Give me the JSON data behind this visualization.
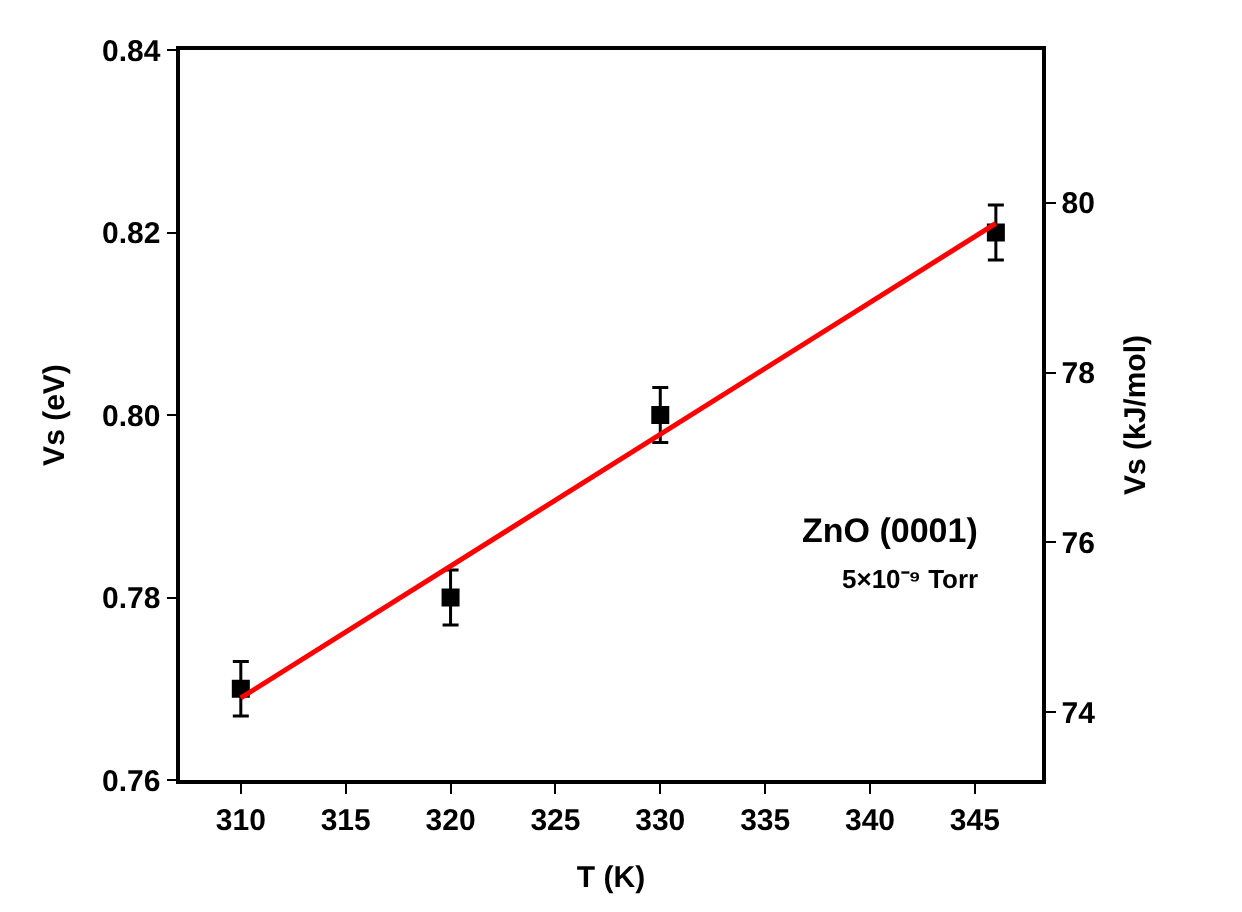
{
  "chart_data": {
    "type": "scatter",
    "xlabel": "T (K)",
    "ylabel": "Vs (eV)",
    "y2label": "Vs (kJ/mol)",
    "x": [
      310,
      320,
      330,
      346
    ],
    "series": [
      {
        "color": "#000000",
        "marker": "square",
        "values": [
          0.77,
          0.78,
          0.8,
          0.82
        ],
        "errors": [
          0.003,
          0.003,
          0.003,
          0.003
        ]
      },
      {
        "type": "line",
        "color": "#ff0000",
        "x": [
          310,
          346
        ],
        "values": [
          0.769,
          0.821
        ],
        "line_style": "solid"
      }
    ],
    "xlim": [
      307.1,
      348.2
    ],
    "xticks": [
      310,
      315,
      320,
      325,
      330,
      335,
      340,
      345
    ],
    "ylim": [
      0.76,
      0.84
    ],
    "yticks": [
      {
        "value": 0.76,
        "label": "0.76"
      },
      {
        "value": 0.78,
        "label": "0.78"
      },
      {
        "value": 0.8,
        "label": "0.80"
      },
      {
        "value": 0.82,
        "label": "0.82"
      },
      {
        "value": 0.84,
        "label": "0.84"
      }
    ],
    "y2lim": [
      73.2,
      81.8
    ],
    "y2ticks": [
      74,
      76,
      78,
      80
    ],
    "annotations": [
      "ZnO (0001)",
      "5×10⁻⁹ Torr"
    ]
  }
}
